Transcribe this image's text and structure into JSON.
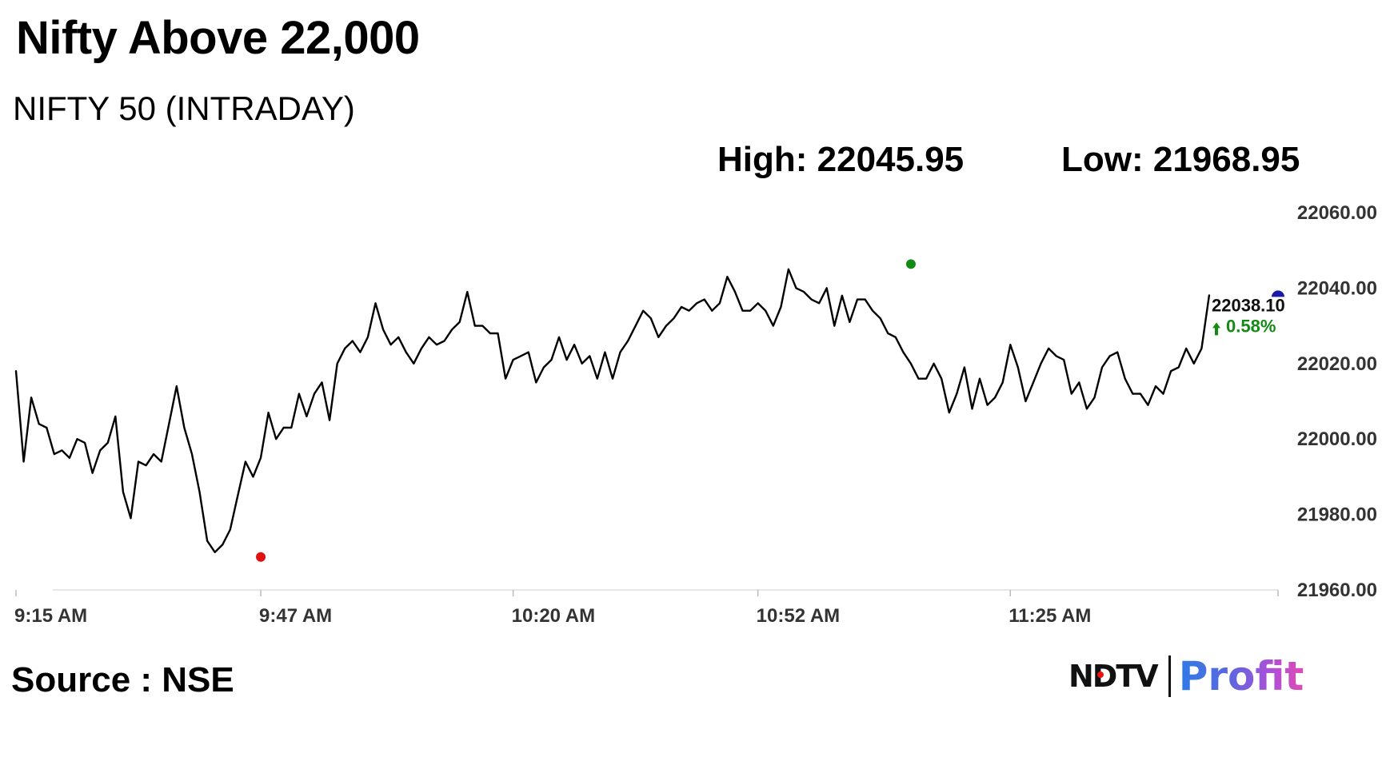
{
  "header": {
    "headline": "Nifty Above 22,000",
    "subtitle": "NIFTY 50 (INTRADAY)",
    "high_text": "High: 22045.95",
    "low_text": "Low: 21968.95"
  },
  "footer": {
    "source_text": "Source : NSE",
    "logo_left": "NDTV",
    "logo_right": "Profit"
  },
  "colors": {
    "line": "#000000",
    "high_marker": "#138a13",
    "low_marker": "#e01010",
    "current_marker": "#1a1aa8",
    "change_text": "#138a13",
    "grid": "#dddddd"
  },
  "chart_data": {
    "type": "line",
    "title": "NIFTY 50 (INTRADAY)",
    "xlabel": "",
    "ylabel": "",
    "ylim": [
      21960,
      22060
    ],
    "yticks": [
      22060,
      22040,
      22020,
      22000,
      21980,
      21960
    ],
    "ytick_labels": [
      "22060.00",
      "22040.00",
      "22020.00",
      "22000.00",
      "21980.00",
      "21960.00"
    ],
    "xlim": [
      "09:15",
      "12:00"
    ],
    "xticks": [
      "09:15",
      "09:47",
      "10:20",
      "10:52",
      "11:25"
    ],
    "xtick_labels": [
      "9:15 AM",
      "9:47 AM",
      "10:20 AM",
      "10:52 AM",
      "11:25 AM"
    ],
    "grid": false,
    "legend": "none",
    "series": [
      {
        "x": [
          "09:15",
          "09:16",
          "09:17",
          "09:18",
          "09:19",
          "09:20",
          "09:21",
          "09:22",
          "09:23",
          "09:24",
          "09:25",
          "09:26",
          "09:27",
          "09:28",
          "09:29",
          "09:30",
          "09:31",
          "09:32",
          "09:33",
          "09:34",
          "09:35",
          "09:36",
          "09:37",
          "09:38",
          "09:39",
          "09:40",
          "09:41",
          "09:42",
          "09:43",
          "09:44",
          "09:45",
          "09:46",
          "09:47",
          "09:48",
          "09:49",
          "09:50",
          "09:51",
          "09:52",
          "09:53",
          "09:54",
          "09:55",
          "09:56",
          "09:57",
          "09:58",
          "09:59",
          "10:00",
          "10:01",
          "10:02",
          "10:03",
          "10:04",
          "10:05",
          "10:06",
          "10:07",
          "10:08",
          "10:09",
          "10:10",
          "10:11",
          "10:12",
          "10:13",
          "10:14",
          "10:15",
          "10:16",
          "10:17",
          "10:18",
          "10:19",
          "10:20",
          "10:21",
          "10:22",
          "10:23",
          "10:24",
          "10:25",
          "10:26",
          "10:27",
          "10:28",
          "10:29",
          "10:30",
          "10:31",
          "10:32",
          "10:33",
          "10:34",
          "10:35",
          "10:36",
          "10:37",
          "10:38",
          "10:39",
          "10:40",
          "10:41",
          "10:42",
          "10:43",
          "10:44",
          "10:45",
          "10:46",
          "10:47",
          "10:48",
          "10:49",
          "10:50",
          "10:51",
          "10:52",
          "10:53",
          "10:54",
          "10:55",
          "10:56",
          "10:57",
          "10:58",
          "10:59",
          "11:00",
          "11:01",
          "11:02",
          "11:03",
          "11:04",
          "11:05",
          "11:06",
          "11:07",
          "11:08",
          "11:09",
          "11:10",
          "11:11",
          "11:12",
          "11:13",
          "11:14",
          "11:15",
          "11:16",
          "11:17",
          "11:18",
          "11:19",
          "11:20",
          "11:21",
          "11:22",
          "11:23",
          "11:24",
          "11:25",
          "11:26",
          "11:27",
          "11:28",
          "11:29",
          "11:30",
          "11:31",
          "11:32",
          "11:33",
          "11:34",
          "11:35",
          "11:36",
          "11:37",
          "11:38",
          "11:39",
          "11:40",
          "11:41",
          "11:42",
          "11:43",
          "11:44",
          "11:45",
          "11:46",
          "11:47",
          "11:48",
          "11:49",
          "11:50",
          "11:51"
        ],
        "values": [
          22018,
          21994,
          22011,
          22004,
          22003,
          21996,
          21997,
          21995,
          22000,
          21999,
          21991,
          21997,
          21999,
          22006,
          21986,
          21979,
          21994,
          21993,
          21996,
          21994,
          22004,
          22014,
          22003,
          21996,
          21986,
          21973,
          21970,
          21972,
          21976,
          21985,
          21994,
          21990,
          21995,
          22007,
          22000,
          22003,
          22003,
          22012,
          22006,
          22012,
          22015,
          22005,
          22020,
          22024,
          22026,
          22023,
          22027,
          22036,
          22029,
          22025,
          22027,
          22023,
          22020,
          22024,
          22027,
          22025,
          22026,
          22029,
          22031,
          22039,
          22030,
          22030,
          22028,
          22028,
          22016,
          22021,
          22022,
          22023,
          22015,
          22019,
          22021,
          22027,
          22021,
          22025,
          22020,
          22022,
          22016,
          22023,
          22016,
          22023,
          22026,
          22030,
          22034,
          22032,
          22027,
          22030,
          22032,
          22035,
          22034,
          22036,
          22037,
          22034,
          22036,
          22043,
          22039,
          22034,
          22034,
          22036,
          22034,
          22030,
          22035,
          22045,
          22040,
          22039,
          22037,
          22036,
          22040,
          22030,
          22038,
          22031,
          22037,
          22037,
          22034,
          22032,
          22028,
          22027,
          22023,
          22020,
          22016,
          22016,
          22020,
          22016,
          22007,
          22012,
          22019,
          22008,
          22016,
          22009,
          22011,
          22015,
          22025,
          22019,
          22010,
          22015,
          22020,
          22024,
          22022,
          22021,
          22012,
          22015,
          22008,
          22011,
          22019,
          22022,
          22023,
          22016,
          22012,
          22012,
          22009,
          22014,
          22012,
          22018,
          22019,
          22024,
          22020,
          22024,
          22038.1
        ]
      }
    ],
    "high": {
      "time": "11:12",
      "value": 22045.95
    },
    "low": {
      "time": "09:47",
      "value": 21968.95
    },
    "current": {
      "time": "12:00",
      "value": 22038.1,
      "label": "22038.10",
      "change": "0.58%"
    },
    "annotations": [
      "High: 22045.95",
      "Low: 21968.95",
      "22038.10",
      "0.58%"
    ]
  }
}
